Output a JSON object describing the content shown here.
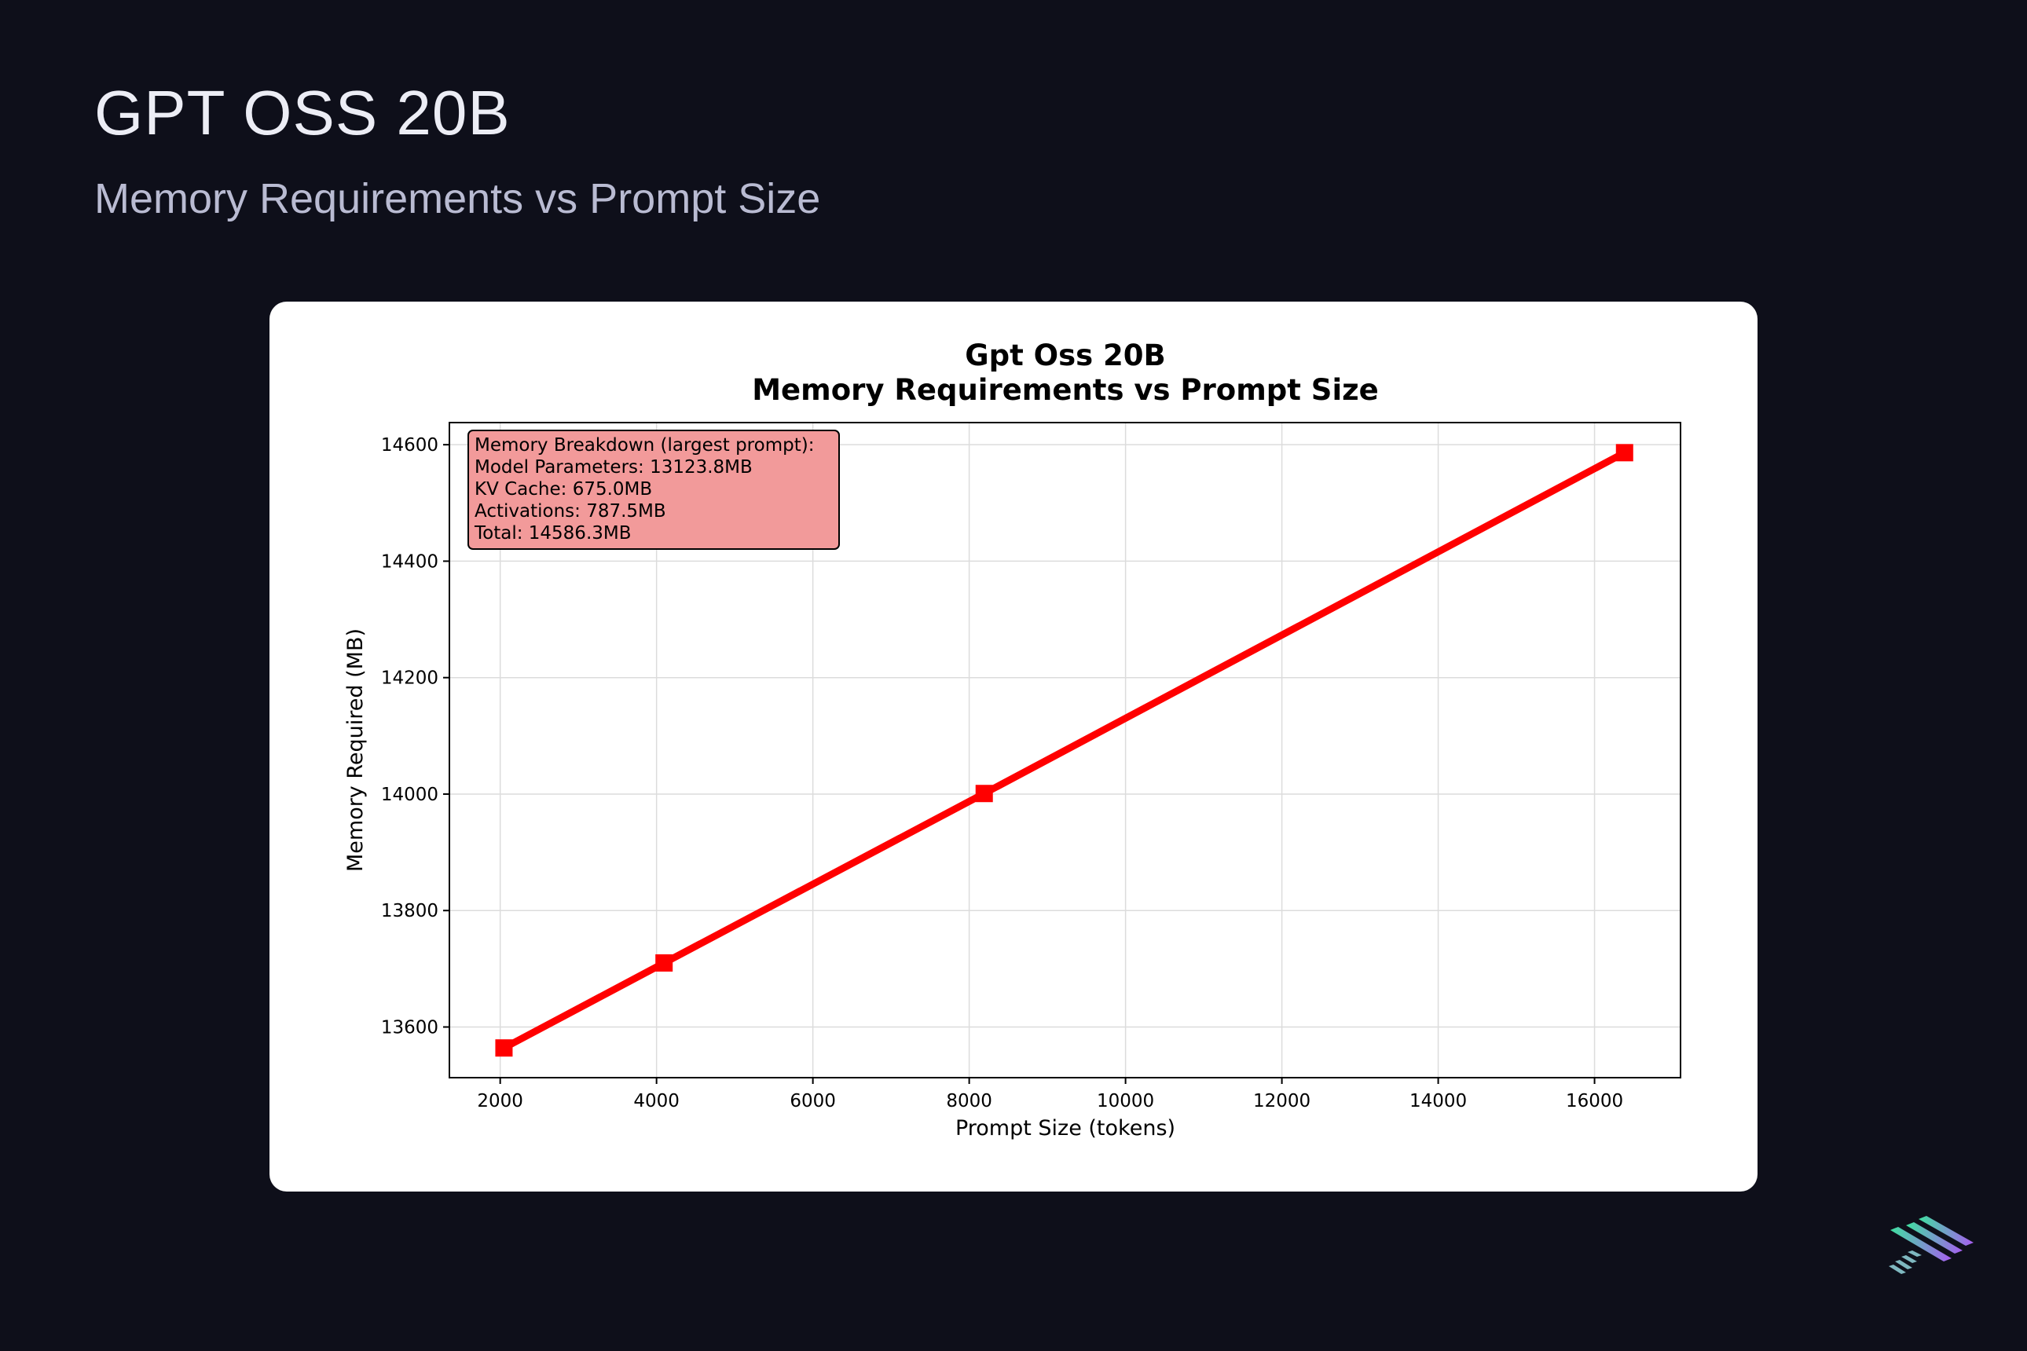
{
  "header": {
    "title": "GPT OSS 20B",
    "subtitle": "Memory Requirements vs Prompt Size"
  },
  "brand": {
    "logo_icon": "stripes-logo-icon"
  },
  "colors": {
    "page_bg": "#0e0f1a",
    "line": "#ff0000",
    "annotation_bg": "#f29a9a",
    "grid": "#dcdcdc"
  },
  "chart_data": {
    "type": "line",
    "title_line1": "Gpt Oss 20B",
    "title_line2": "Memory Requirements vs Prompt Size",
    "xlabel": "Prompt Size (tokens)",
    "ylabel": "Memory Required (MB)",
    "xlim": [
      1350,
      17100
    ],
    "ylim": [
      13513,
      14638
    ],
    "xticks": [
      2000,
      4000,
      6000,
      8000,
      10000,
      12000,
      14000,
      16000
    ],
    "yticks": [
      13600,
      13800,
      14000,
      14200,
      14400,
      14600
    ],
    "grid": true,
    "series": [
      {
        "name": "Memory Required",
        "marker": "square",
        "x": [
          2048,
          4096,
          8192,
          16384
        ],
        "y": [
          13564,
          13710,
          14001,
          14586.3
        ]
      }
    ],
    "annotation": {
      "lines": [
        "Memory Breakdown (largest prompt):",
        "Model Parameters: 13123.8MB",
        "KV Cache: 675.0MB",
        "Activations: 787.5MB",
        "Total: 14586.3MB"
      ],
      "placement": "top-left"
    }
  }
}
